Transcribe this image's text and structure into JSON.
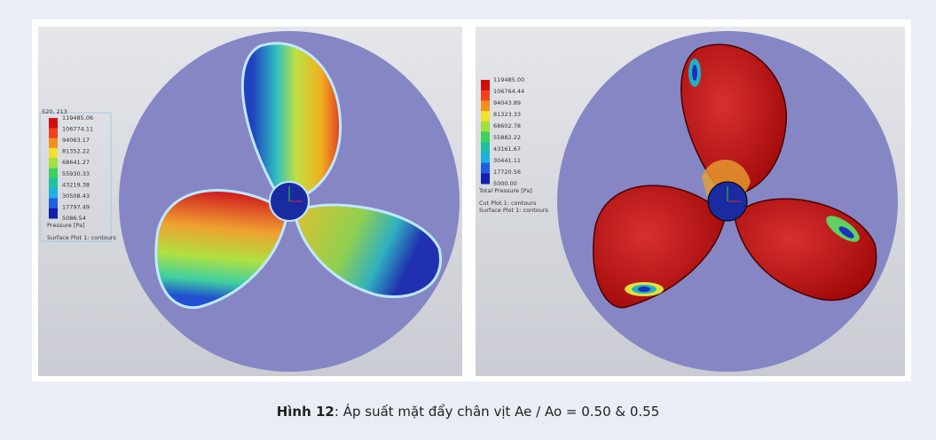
{
  "figure": {
    "images": [
      {
        "coords": "520, 213",
        "legend": {
          "labels": [
            "119485.06",
            "106774.11",
            "94063.17",
            "81352.22",
            "68641.27",
            "55930.33",
            "43219.38",
            "30508.43",
            "17797.49",
            "5086.54"
          ],
          "title": "Pressure [Pa]"
        },
        "plots": [
          "Surface Plot 1: contours"
        ]
      },
      {
        "legend": {
          "labels": [
            "119485.00",
            "106764.44",
            "94043.89",
            "81323.33",
            "68602.78",
            "55882.22",
            "43161.67",
            "30441.11",
            "17720.56",
            "5000.00"
          ],
          "title": "Total Pressure [Pa]"
        },
        "plots": [
          "Cut Plot 1: contours",
          "Surface Plot 1: contours"
        ]
      }
    ]
  },
  "caption": {
    "label": "Hình 12",
    "text": ": Áp suất mặt đẩy chân vịt Ae / Ao = 0.50 & 0.55"
  }
}
